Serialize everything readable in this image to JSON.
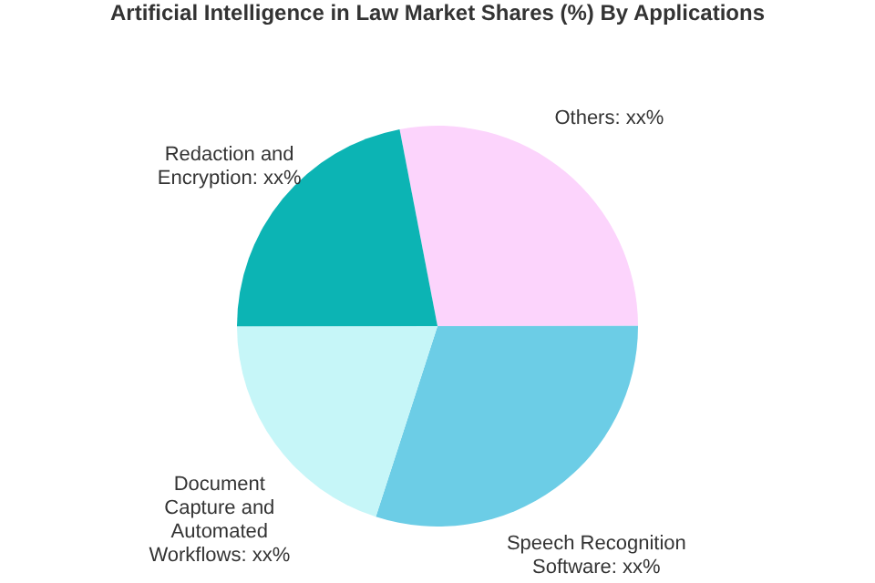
{
  "chart_data": {
    "type": "pie",
    "title": "Artificial Intelligence in Law Market Shares (%) By Applications",
    "categories": [
      "Others: xx%",
      "Speech Recognition Software: xx%",
      "Document Capture and Automated Workflows: xx%",
      "Redaction and Encryption: xx%"
    ],
    "values": [
      28,
      30,
      20,
      22
    ],
    "colors": [
      "#fcd4fc",
      "#6ccde6",
      "#c6f6f8",
      "#0cb4b4"
    ]
  }
}
